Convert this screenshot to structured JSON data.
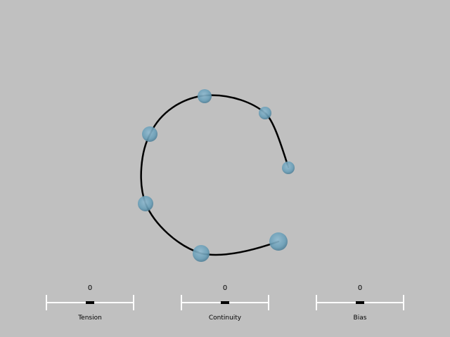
{
  "spline": {
    "control_points": [
      {
        "id": "p1"
      },
      {
        "id": "p2"
      },
      {
        "id": "p3"
      },
      {
        "id": "p4"
      },
      {
        "id": "p5"
      },
      {
        "id": "p6"
      },
      {
        "id": "p7"
      }
    ]
  },
  "sliders": {
    "tension": {
      "label": "Tension",
      "value": "0",
      "value_fraction": 0.5
    },
    "continuity": {
      "label": "Continuity",
      "value": "0",
      "value_fraction": 0.5
    },
    "bias": {
      "label": "Bias",
      "value": "0",
      "value_fraction": 0.5
    }
  },
  "colors": {
    "background": "#c0c0c0",
    "curve": "#000000",
    "point_fill": "#6a9fb8",
    "track": "#ffffff"
  }
}
